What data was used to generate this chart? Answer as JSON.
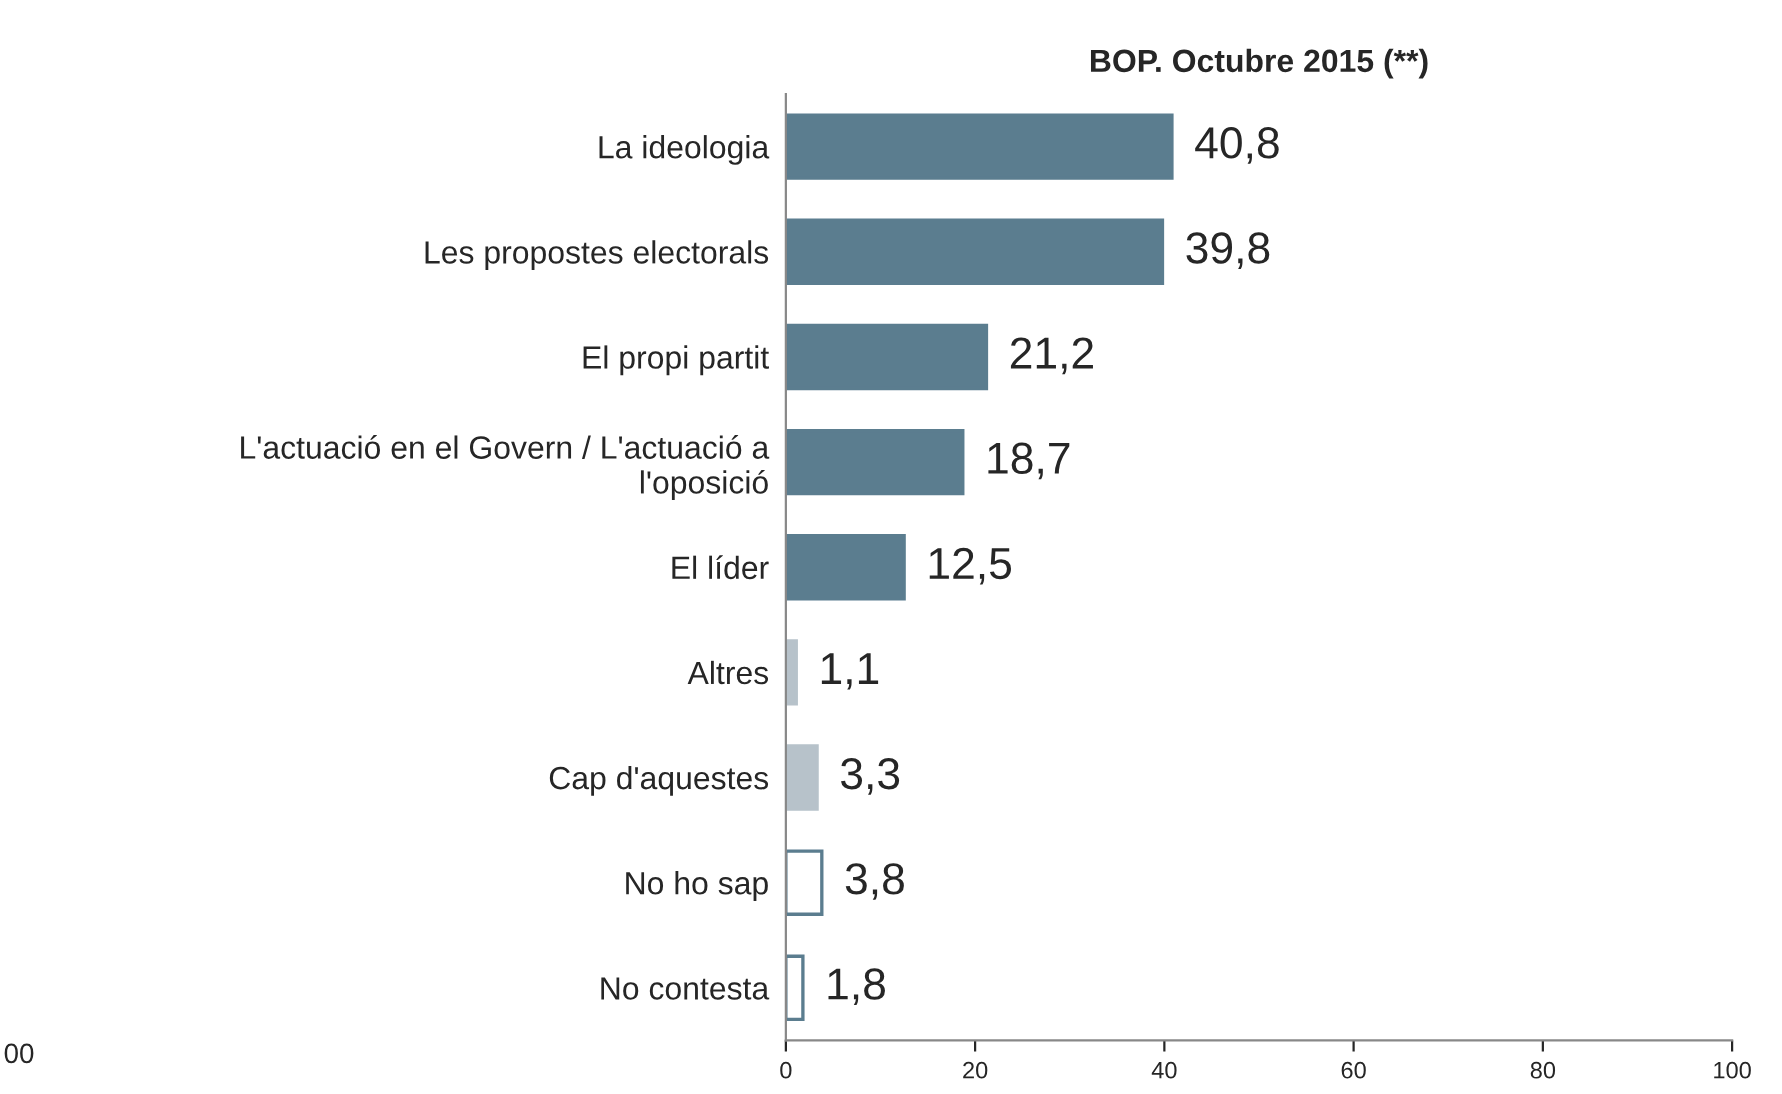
{
  "chart_data": {
    "type": "bar",
    "orientation": "horizontal",
    "title": "BOP. Octubre 2015 (**)",
    "categories": [
      "La ideologia",
      "Les propostes electorals",
      "El propi partit",
      "L'actuació en el Govern / L'actuació a\nl'oposició",
      "El líder",
      "Altres",
      "Cap d'aquestes",
      "No ho sap",
      "No contesta"
    ],
    "values": [
      40.8,
      39.8,
      21.2,
      18.7,
      12.5,
      1.1,
      3.3,
      3.8,
      1.8
    ],
    "value_labels": [
      "40,8",
      "39,8",
      "21,2",
      "18,7",
      "12,5",
      "1,1",
      "3,3",
      "3,8",
      "1,8"
    ],
    "colors": [
      "#5b7d8f",
      "#5b7d8f",
      "#5b7d8f",
      "#5b7d8f",
      "#5b7d8f",
      "#b7c2ca",
      "#b7c2ca",
      "#ffffff",
      "#ffffff"
    ],
    "xlim": [
      0,
      100
    ],
    "xticks": [
      0,
      20,
      40,
      60,
      80,
      100
    ],
    "grid": false,
    "legend": false,
    "annotations": [
      "00"
    ]
  }
}
